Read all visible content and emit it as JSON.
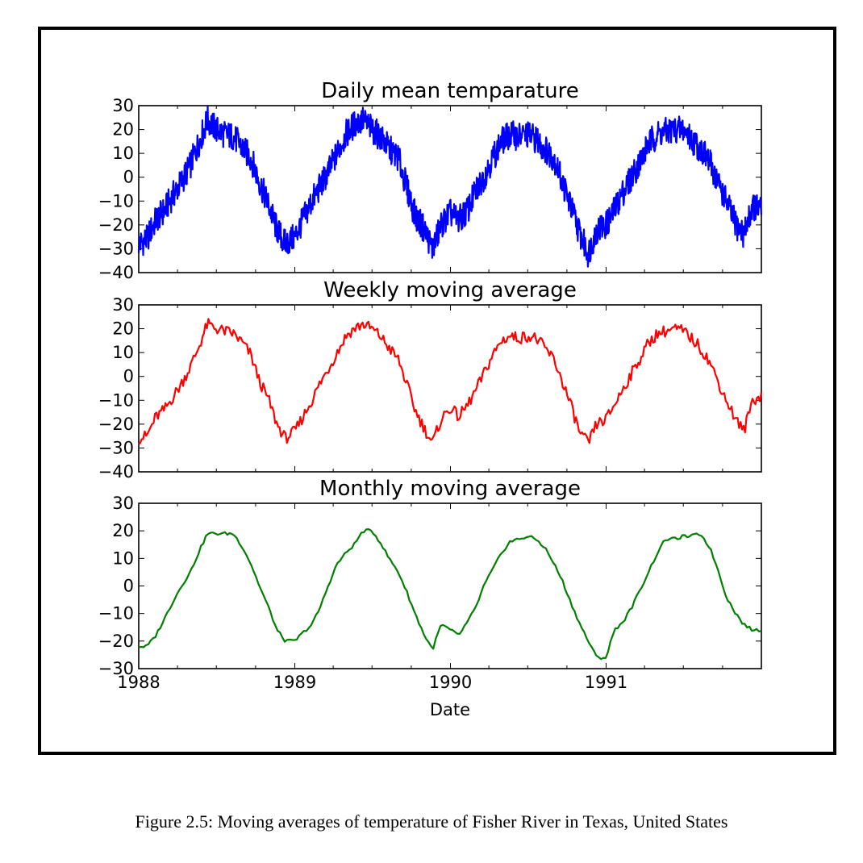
{
  "caption": "Figure 2.5: Moving averages of temperature of Fisher River in Texas, United States",
  "chart_data": [
    {
      "type": "line",
      "title": "Daily mean temparature",
      "color": "#0000ff",
      "ylim": [
        -40,
        30
      ],
      "yticks": [
        30,
        20,
        10,
        0,
        -10,
        -20,
        -30,
        -40
      ],
      "x_start": "1988-01-01",
      "x_end": "1991-12-31",
      "xticks": [
        "1988",
        "1989",
        "1990",
        "1991"
      ],
      "xlabel": "",
      "series": [
        {
          "x": [
            "1988-01-01",
            "1988-01-20",
            "1988-02-10",
            "1988-03-01",
            "1988-03-20",
            "1988-04-10",
            "1988-05-01",
            "1988-05-20",
            "1988-06-10",
            "1988-07-01",
            "1988-07-20",
            "1988-08-10",
            "1988-09-01",
            "1988-09-20",
            "1988-10-10",
            "1988-11-01",
            "1988-11-20",
            "1988-12-10",
            "1989-01-01",
            "1989-01-20",
            "1989-02-10",
            "1989-03-01",
            "1989-03-20",
            "1989-04-10",
            "1989-05-01",
            "1989-05-20",
            "1989-06-10",
            "1989-07-01",
            "1989-07-20",
            "1989-08-10",
            "1989-09-01",
            "1989-09-20",
            "1989-10-10",
            "1989-11-01",
            "1989-11-20",
            "1989-12-10",
            "1990-01-01",
            "1990-01-20",
            "1990-02-10",
            "1990-03-01",
            "1990-03-20",
            "1990-04-10",
            "1990-05-01",
            "1990-05-20",
            "1990-06-10",
            "1990-07-01",
            "1990-07-20",
            "1990-08-10",
            "1990-09-01",
            "1990-09-20",
            "1990-10-10",
            "1990-11-01",
            "1990-11-20",
            "1990-12-10",
            "1991-01-01",
            "1991-01-20",
            "1991-02-10",
            "1991-03-01",
            "1991-03-20",
            "1991-04-10",
            "1991-05-01",
            "1991-05-20",
            "1991-06-10",
            "1991-07-01",
            "1991-07-20",
            "1991-08-10",
            "1991-09-01",
            "1991-09-20",
            "1991-10-10",
            "1991-11-01",
            "1991-11-20",
            "1991-12-10",
            "1991-12-31"
          ],
          "y": [
            -28,
            -26,
            -18,
            -14,
            -8,
            -2,
            5,
            14,
            24,
            20,
            18,
            17,
            12,
            8,
            -2,
            -12,
            -22,
            -28,
            -25,
            -18,
            -10,
            -4,
            2,
            10,
            18,
            22,
            24,
            20,
            17,
            12,
            8,
            -4,
            -16,
            -22,
            -30,
            -20,
            -15,
            -18,
            -14,
            -6,
            0,
            8,
            15,
            18,
            17,
            18,
            16,
            12,
            8,
            -2,
            -12,
            -24,
            -32,
            -22,
            -20,
            -14,
            -6,
            0,
            6,
            14,
            18,
            19,
            20,
            20,
            16,
            12,
            6,
            -2,
            -10,
            -20,
            -24,
            -12,
            -14
          ]
        }
      ]
    },
    {
      "type": "line",
      "title": "Weekly moving average",
      "color": "#ff0000",
      "ylim": [
        -40,
        30
      ],
      "yticks": [
        30,
        20,
        10,
        0,
        -10,
        -20,
        -30,
        -40
      ],
      "x_start": "1988-01-01",
      "x_end": "1991-12-31",
      "xticks": [
        "1988",
        "1989",
        "1990",
        "1991"
      ],
      "xlabel": "",
      "series": [
        {
          "x": [
            "1988-01-01",
            "1988-01-20",
            "1988-02-10",
            "1988-03-01",
            "1988-03-20",
            "1988-04-10",
            "1988-05-01",
            "1988-05-20",
            "1988-06-10",
            "1988-07-01",
            "1988-07-20",
            "1988-08-10",
            "1988-09-01",
            "1988-09-20",
            "1988-10-10",
            "1988-11-01",
            "1988-11-20",
            "1988-12-10",
            "1989-01-01",
            "1989-01-20",
            "1989-02-10",
            "1989-03-01",
            "1989-03-20",
            "1989-04-10",
            "1989-05-01",
            "1989-05-20",
            "1989-06-10",
            "1989-07-01",
            "1989-07-20",
            "1989-08-10",
            "1989-09-01",
            "1989-09-20",
            "1989-10-10",
            "1989-11-01",
            "1989-11-20",
            "1989-12-10",
            "1990-01-01",
            "1990-01-20",
            "1990-02-10",
            "1990-03-01",
            "1990-03-20",
            "1990-04-10",
            "1990-05-01",
            "1990-05-20",
            "1990-06-10",
            "1990-07-01",
            "1990-07-20",
            "1990-08-10",
            "1990-09-01",
            "1990-09-20",
            "1990-10-10",
            "1990-11-01",
            "1990-11-20",
            "1990-12-10",
            "1991-01-01",
            "1991-01-20",
            "1991-02-10",
            "1991-03-01",
            "1991-03-20",
            "1991-04-10",
            "1991-05-01",
            "1991-05-20",
            "1991-06-10",
            "1991-07-01",
            "1991-07-20",
            "1991-08-10",
            "1991-09-01",
            "1991-09-20",
            "1991-10-10",
            "1991-11-01",
            "1991-11-20",
            "1991-12-10",
            "1991-12-31"
          ],
          "y": [
            -26,
            -25,
            -17,
            -14,
            -9,
            -3,
            4,
            12,
            22,
            20,
            19,
            18,
            14,
            9,
            -2,
            -10,
            -20,
            -26,
            -23,
            -17,
            -10,
            -3,
            3,
            10,
            17,
            20,
            22,
            20,
            17,
            12,
            7,
            -3,
            -14,
            -22,
            -28,
            -18,
            -13,
            -17,
            -12,
            -6,
            1,
            9,
            15,
            17,
            16,
            17,
            16,
            12,
            7,
            -2,
            -12,
            -24,
            -28,
            -20,
            -18,
            -12,
            -5,
            1,
            7,
            14,
            18,
            19,
            20,
            19,
            16,
            12,
            6,
            -2,
            -10,
            -18,
            -23,
            -10,
            -8
          ]
        }
      ]
    },
    {
      "type": "line",
      "title": "Monthly moving average",
      "color": "#008000",
      "ylim": [
        -30,
        30
      ],
      "yticks": [
        30,
        20,
        10,
        0,
        -10,
        -20,
        -30
      ],
      "x_start": "1988-01-01",
      "x_end": "1991-12-31",
      "xticks": [
        "1988",
        "1989",
        "1990",
        "1991"
      ],
      "xlabel": "Date",
      "series": [
        {
          "x": [
            "1988-01-01",
            "1988-01-20",
            "1988-02-10",
            "1988-03-01",
            "1988-03-20",
            "1988-04-10",
            "1988-05-01",
            "1988-05-20",
            "1988-06-10",
            "1988-07-01",
            "1988-07-20",
            "1988-08-10",
            "1988-09-01",
            "1988-09-20",
            "1988-10-10",
            "1988-11-01",
            "1988-11-20",
            "1988-12-10",
            "1989-01-01",
            "1989-01-20",
            "1989-02-10",
            "1989-03-01",
            "1989-03-20",
            "1989-04-10",
            "1989-05-01",
            "1989-05-20",
            "1989-06-10",
            "1989-07-01",
            "1989-07-20",
            "1989-08-10",
            "1989-09-01",
            "1989-09-20",
            "1989-10-10",
            "1989-11-01",
            "1989-11-20",
            "1989-12-10",
            "1990-01-01",
            "1990-01-20",
            "1990-02-10",
            "1990-03-01",
            "1990-03-20",
            "1990-04-10",
            "1990-05-01",
            "1990-05-20",
            "1990-06-10",
            "1990-07-01",
            "1990-07-20",
            "1990-08-10",
            "1990-09-01",
            "1990-09-20",
            "1990-10-10",
            "1990-11-01",
            "1990-11-20",
            "1990-12-10",
            "1991-01-01",
            "1991-01-20",
            "1991-02-10",
            "1991-03-01",
            "1991-03-20",
            "1991-04-10",
            "1991-05-01",
            "1991-05-20",
            "1991-06-10",
            "1991-07-01",
            "1991-07-20",
            "1991-08-10",
            "1991-09-01",
            "1991-09-20",
            "1991-10-10",
            "1991-11-01",
            "1991-11-20",
            "1991-12-10",
            "1991-12-31"
          ],
          "y": [
            -22,
            -22,
            -18,
            -12,
            -6,
            0,
            5,
            12,
            19,
            19,
            19,
            19,
            14,
            8,
            0,
            -8,
            -16,
            -20,
            -20,
            -17,
            -14,
            -8,
            0,
            8,
            12,
            15,
            20,
            20,
            16,
            10,
            5,
            -2,
            -10,
            -18,
            -23,
            -14,
            -16,
            -18,
            -13,
            -8,
            0,
            6,
            12,
            16,
            17,
            18,
            17,
            14,
            8,
            2,
            -6,
            -14,
            -20,
            -26,
            -26,
            -16,
            -13,
            -8,
            -2,
            5,
            12,
            17,
            17,
            18,
            18,
            19,
            14,
            6,
            -4,
            -10,
            -14,
            -16,
            -16
          ]
        }
      ]
    }
  ]
}
